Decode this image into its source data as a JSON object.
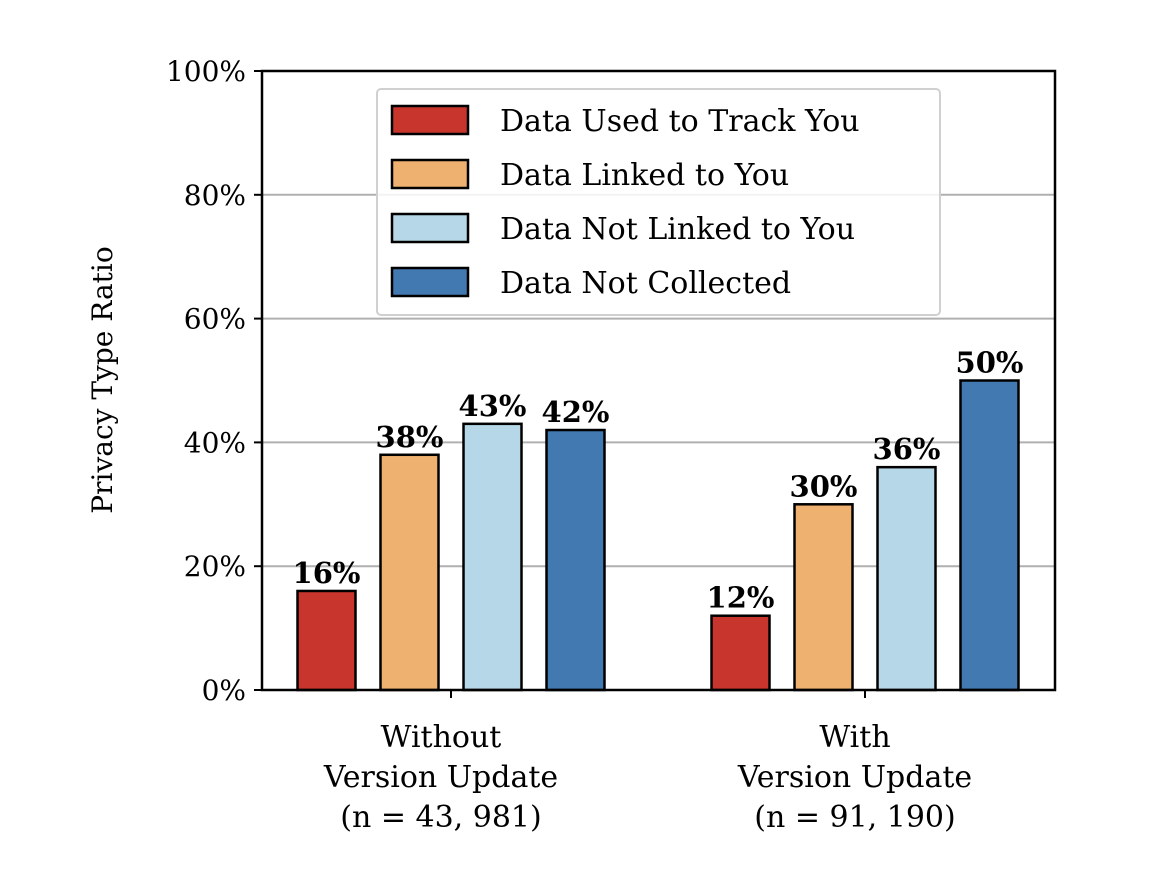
{
  "chart_data": {
    "type": "bar",
    "ylabel": "Privacy Type Ratio",
    "xlabel": "",
    "ylim": [
      0,
      100
    ],
    "yticks": [
      0,
      20,
      40,
      60,
      80,
      100
    ],
    "ytick_labels": [
      "0%",
      "20%",
      "40%",
      "60%",
      "80%",
      "100%"
    ],
    "grid": "horizontal",
    "legend_position": "top-center",
    "categories": [
      [
        "Without",
        "Version Update",
        "(n = 43, 981)"
      ],
      [
        "With",
        "Version Update",
        "(n = 91, 190)"
      ]
    ],
    "series": [
      {
        "name": "Data Used to Track You",
        "color": "#c8352c",
        "values": [
          16,
          12
        ],
        "labels": [
          "16%",
          "12%"
        ]
      },
      {
        "name": "Data Linked to You",
        "color": "#eeb16f",
        "values": [
          38,
          30
        ],
        "labels": [
          "38%",
          "30%"
        ]
      },
      {
        "name": "Data Not Linked to You",
        "color": "#b5d7e8",
        "values": [
          43,
          36
        ],
        "labels": [
          "43%",
          "36%"
        ]
      },
      {
        "name": "Data Not Collected",
        "color": "#4279b0",
        "values": [
          42,
          50
        ],
        "labels": [
          "42%",
          "50%"
        ]
      }
    ]
  }
}
